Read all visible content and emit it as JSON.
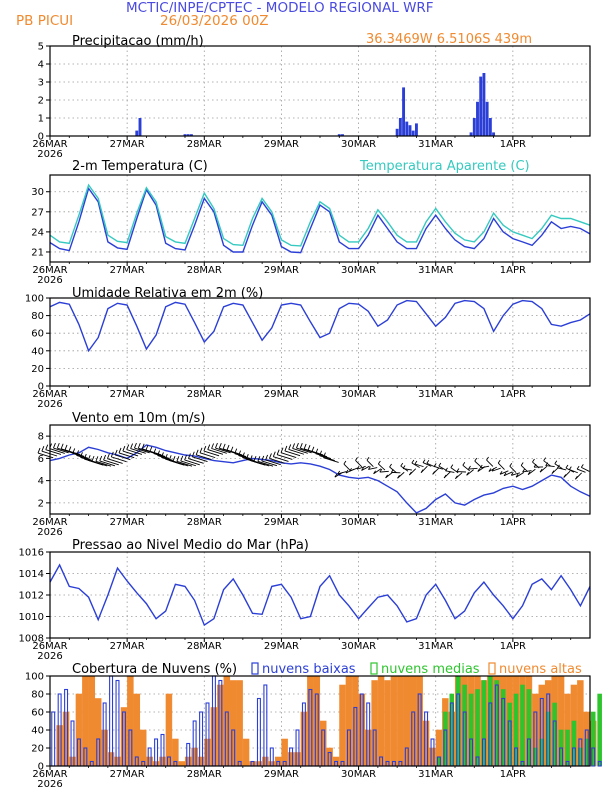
{
  "header": {
    "title": "MCTIC/INPE/CPTEC - MODELO REGIONAL WRF",
    "station": "PB PICUI",
    "run": "26/03/2026 00Z",
    "coords": "36.3469W 6.5106S 439m"
  },
  "colors": {
    "title": "#4a4adf",
    "orange": "#f08a30",
    "blue": "#2b3fd6",
    "cyan": "#35c9c0",
    "green": "#2ec42e",
    "black": "#000000"
  },
  "chart_data": [
    {
      "id": "precip",
      "type": "bar",
      "title": "Precipitacao (mm/h)",
      "ylim": [
        0,
        5
      ],
      "yticks": [
        0,
        1,
        2,
        3,
        4,
        5
      ],
      "xlim_hours": [
        0,
        168
      ],
      "x_hours": [
        27,
        28,
        42,
        43,
        44,
        90,
        91,
        108,
        109,
        110,
        111,
        112,
        113,
        114,
        131,
        132,
        133,
        134,
        135,
        136,
        137,
        138
      ],
      "values": [
        0.3,
        1.0,
        0.1,
        0.1,
        0.1,
        0.1,
        0.1,
        0.4,
        1.0,
        2.7,
        0.8,
        0.6,
        0.3,
        0.7,
        0.2,
        1.0,
        1.9,
        3.3,
        3.5,
        1.9,
        1.0,
        0.2
      ]
    },
    {
      "id": "temperature",
      "type": "line",
      "title": "2-m Temperatura (C)",
      "right_title": "Temperatura Aparente (C)",
      "ylim": [
        19.5,
        32.5
      ],
      "yticks": [
        21,
        24,
        27,
        30
      ],
      "series": [
        {
          "name": "2-m Temperatura (C)",
          "x": [
            0,
            3,
            6,
            9,
            12,
            15,
            18,
            21,
            24,
            27,
            30,
            33,
            36,
            39,
            42,
            45,
            48,
            51,
            54,
            57,
            60,
            63,
            66,
            69,
            72,
            75,
            78,
            81,
            84,
            87,
            90,
            93,
            96,
            99,
            102,
            105,
            108,
            111,
            114,
            117,
            120,
            123,
            126,
            129,
            132,
            135,
            138,
            141,
            144,
            147,
            150,
            153,
            156,
            159,
            162,
            165,
            168
          ],
          "values": [
            22.4,
            21.5,
            21.2,
            25.5,
            30.5,
            28.5,
            22.5,
            21.6,
            21.4,
            26.0,
            30.3,
            28.0,
            22.3,
            21.5,
            21.3,
            25.0,
            29.0,
            27.0,
            22.0,
            21.0,
            21.0,
            25.0,
            28.5,
            26.5,
            21.8,
            21.0,
            20.9,
            24.5,
            28.0,
            27.0,
            22.5,
            21.5,
            21.5,
            23.5,
            26.5,
            24.5,
            22.5,
            21.5,
            21.5,
            24.5,
            26.5,
            24.5,
            22.8,
            21.8,
            21.5,
            23.0,
            26.0,
            24.0,
            23.0,
            22.5,
            22.0,
            23.5,
            25.5,
            24.5,
            24.8,
            24.5,
            23.7
          ]
        },
        {
          "name": "Temperatura Aparente (C)",
          "x": [
            0,
            3,
            6,
            9,
            12,
            15,
            18,
            21,
            24,
            27,
            30,
            33,
            36,
            39,
            42,
            45,
            48,
            51,
            54,
            57,
            60,
            63,
            66,
            69,
            72,
            75,
            78,
            81,
            84,
            87,
            90,
            93,
            96,
            99,
            102,
            105,
            108,
            111,
            114,
            117,
            120,
            123,
            126,
            129,
            132,
            135,
            138,
            141,
            144,
            147,
            150,
            153,
            156,
            159,
            162,
            165,
            168
          ],
          "values": [
            23.5,
            22.5,
            22.3,
            26.5,
            31.0,
            29.0,
            23.5,
            22.6,
            22.4,
            26.8,
            30.6,
            28.5,
            23.3,
            22.5,
            22.3,
            26.0,
            29.8,
            27.5,
            23.0,
            22.1,
            22.0,
            26.0,
            29.0,
            27.0,
            22.8,
            22.0,
            21.9,
            25.5,
            28.5,
            27.5,
            23.5,
            22.5,
            22.5,
            24.5,
            27.3,
            25.5,
            23.5,
            22.5,
            22.5,
            25.5,
            27.5,
            25.5,
            23.8,
            22.8,
            22.5,
            24.0,
            26.8,
            25.0,
            24.0,
            23.5,
            23.0,
            24.5,
            26.5,
            26.0,
            26.0,
            25.5,
            25.0
          ]
        }
      ]
    },
    {
      "id": "humidity",
      "type": "line",
      "title": "Umidade Relativa em 2m (%)",
      "ylim": [
        0,
        100
      ],
      "yticks": [
        0,
        20,
        40,
        60,
        80,
        100
      ],
      "series": [
        {
          "name": "Umidade Relativa em 2m (%)",
          "x": [
            0,
            3,
            6,
            9,
            12,
            15,
            18,
            21,
            24,
            27,
            30,
            33,
            36,
            39,
            42,
            45,
            48,
            51,
            54,
            57,
            60,
            63,
            66,
            69,
            72,
            75,
            78,
            81,
            84,
            87,
            90,
            93,
            96,
            99,
            102,
            105,
            108,
            111,
            114,
            117,
            120,
            123,
            126,
            129,
            132,
            135,
            138,
            141,
            144,
            147,
            150,
            153,
            156,
            159,
            162,
            165,
            168
          ],
          "values": [
            90,
            95,
            93,
            70,
            40,
            55,
            88,
            94,
            92,
            68,
            42,
            58,
            90,
            95,
            93,
            72,
            50,
            62,
            90,
            94,
            92,
            72,
            52,
            66,
            92,
            94,
            92,
            73,
            55,
            60,
            88,
            94,
            93,
            85,
            68,
            75,
            92,
            97,
            96,
            82,
            68,
            78,
            94,
            97,
            96,
            88,
            62,
            80,
            93,
            97,
            96,
            88,
            70,
            68,
            72,
            75,
            82
          ]
        }
      ]
    },
    {
      "id": "wind",
      "type": "line",
      "title": "Vento em 10m (m/s)",
      "ylim": [
        1,
        9
      ],
      "yticks": [
        2,
        4,
        6,
        8
      ],
      "series": [
        {
          "name": "Vento em 10m (m/s)",
          "x": [
            0,
            3,
            6,
            9,
            12,
            15,
            18,
            21,
            24,
            27,
            30,
            33,
            36,
            39,
            42,
            45,
            48,
            51,
            54,
            57,
            60,
            63,
            66,
            69,
            72,
            75,
            78,
            81,
            84,
            87,
            90,
            93,
            96,
            99,
            102,
            105,
            108,
            111,
            114,
            117,
            120,
            123,
            126,
            129,
            132,
            135,
            138,
            141,
            144,
            147,
            150,
            153,
            156,
            159,
            162,
            165,
            168
          ],
          "values": [
            5.8,
            6.0,
            6.3,
            6.5,
            7.0,
            6.8,
            6.5,
            6.3,
            6.0,
            6.5,
            7.2,
            7.0,
            6.7,
            6.5,
            6.3,
            6.2,
            6.0,
            5.8,
            5.7,
            5.6,
            5.8,
            6.0,
            5.9,
            5.8,
            5.6,
            5.5,
            5.6,
            5.5,
            5.3,
            5.0,
            4.5,
            4.3,
            4.2,
            4.3,
            4.0,
            3.5,
            3.0,
            2.0,
            1.1,
            1.5,
            2.3,
            2.8,
            2.0,
            1.8,
            2.3,
            2.7,
            2.9,
            3.3,
            3.5,
            3.2,
            3.5,
            4.0,
            4.5,
            4.3,
            3.5,
            3.0,
            2.6
          ]
        }
      ],
      "barbs": "wind barbs along 5.5 to 6.5 m/s"
    },
    {
      "id": "pressure",
      "type": "line",
      "title": "Pressao ao Nivel Medio do Mar (hPa)",
      "ylim": [
        1008,
        1016
      ],
      "yticks": [
        1008,
        1010,
        1012,
        1014,
        1016
      ],
      "series": [
        {
          "name": "Pressao ao Nivel Medio do Mar (hPa)",
          "x": [
            0,
            3,
            6,
            9,
            12,
            15,
            18,
            21,
            24,
            27,
            30,
            33,
            36,
            39,
            42,
            45,
            48,
            51,
            54,
            57,
            60,
            63,
            66,
            69,
            72,
            75,
            78,
            81,
            84,
            87,
            90,
            93,
            96,
            99,
            102,
            105,
            108,
            111,
            114,
            117,
            120,
            123,
            126,
            129,
            132,
            135,
            138,
            141,
            144,
            147,
            150,
            153,
            156,
            159,
            162,
            165,
            168
          ],
          "values": [
            1013.2,
            1014.8,
            1012.8,
            1012.6,
            1011.8,
            1009.7,
            1012.0,
            1014.5,
            1013.3,
            1012.2,
            1011.2,
            1009.8,
            1010.5,
            1013.0,
            1012.8,
            1011.5,
            1009.2,
            1009.8,
            1012.5,
            1013.5,
            1012.0,
            1010.3,
            1010.2,
            1012.8,
            1013.0,
            1011.8,
            1009.8,
            1010.0,
            1012.8,
            1013.8,
            1012.0,
            1011.0,
            1009.8,
            1010.8,
            1011.8,
            1012.0,
            1011.0,
            1009.5,
            1009.8,
            1012.0,
            1013.0,
            1011.5,
            1009.8,
            1010.5,
            1012.2,
            1013.2,
            1012.0,
            1011.0,
            1009.8,
            1011.0,
            1013.0,
            1013.5,
            1012.5,
            1013.8,
            1012.5,
            1011.0,
            1012.8
          ]
        }
      ]
    },
    {
      "id": "clouds",
      "type": "bar",
      "title": "Cobertura de Nuvens (%)",
      "legend": [
        "nuvens baixas",
        "nuvens medias",
        "nuvens altas"
      ],
      "ylim": [
        0,
        100
      ],
      "yticks": [
        0,
        20,
        40,
        60,
        80,
        100
      ],
      "x_hours_step": 2,
      "series": [
        {
          "name": "nuvens altas",
          "values": [
            0,
            45,
            60,
            10,
            80,
            100,
            100,
            75,
            40,
            15,
            10,
            65,
            100,
            80,
            40,
            10,
            5,
            10,
            80,
            30,
            5,
            10,
            20,
            10,
            30,
            65,
            90,
            100,
            95,
            95,
            30,
            5,
            5,
            10,
            5,
            10,
            30,
            15,
            15,
            60,
            100,
            100,
            50,
            20,
            10,
            90,
            100,
            100,
            80,
            40,
            95,
            100,
            95,
            100,
            100,
            100,
            100,
            100,
            50,
            20,
            40,
            75,
            60,
            100,
            100,
            100,
            100,
            95,
            100,
            100,
            100,
            100,
            100,
            100,
            100,
            80,
            90,
            95,
            100,
            100,
            80,
            90,
            95,
            60,
            50,
            0
          ]
        },
        {
          "name": "nuvens medias",
          "values": [
            0,
            0,
            0,
            0,
            0,
            0,
            0,
            0,
            0,
            0,
            0,
            0,
            0,
            0,
            0,
            0,
            0,
            0,
            0,
            0,
            0,
            0,
            0,
            0,
            0,
            0,
            0,
            0,
            0,
            0,
            0,
            0,
            0,
            0,
            0,
            0,
            0,
            0,
            0,
            0,
            0,
            0,
            0,
            0,
            0,
            0,
            0,
            0,
            0,
            0,
            0,
            0,
            0,
            0,
            0,
            0,
            0,
            0,
            0,
            0,
            10,
            60,
            80,
            100,
            90,
            80,
            85,
            95,
            100,
            95,
            85,
            70,
            80,
            90,
            85,
            20,
            30,
            60,
            70,
            40,
            40,
            50,
            20,
            30,
            60,
            80
          ]
        },
        {
          "name": "nuvens baixas",
          "values": [
            60,
            80,
            85,
            50,
            30,
            20,
            5,
            30,
            70,
            100,
            95,
            60,
            40,
            10,
            5,
            20,
            30,
            35,
            10,
            5,
            0,
            25,
            50,
            60,
            70,
            100,
            95,
            60,
            40,
            5,
            0,
            5,
            75,
            90,
            20,
            5,
            5,
            20,
            40,
            70,
            85,
            80,
            40,
            15,
            5,
            5,
            40,
            65,
            80,
            70,
            40,
            10,
            5,
            5,
            5,
            20,
            60,
            80,
            60,
            30,
            10,
            40,
            70,
            80,
            60,
            30,
            10,
            30,
            70,
            90,
            75,
            50,
            20,
            5,
            30,
            60,
            75,
            80,
            50,
            20,
            5,
            20,
            30,
            40,
            20,
            5
          ]
        }
      ]
    }
  ],
  "xaxis": {
    "labels": [
      "26MAR",
      "27MAR",
      "28MAR",
      "29MAR",
      "30MAR",
      "31MAR",
      "1APR"
    ],
    "label_hours": [
      0,
      24,
      48,
      72,
      96,
      120,
      144
    ],
    "year": "2026"
  }
}
